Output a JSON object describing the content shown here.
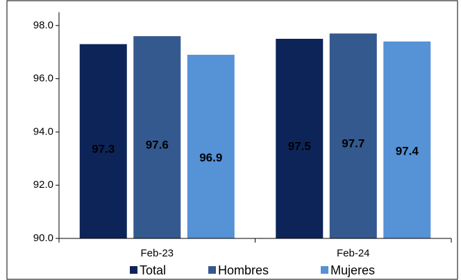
{
  "chart_data": {
    "type": "bar",
    "categories": [
      "Feb-23",
      "Feb-24"
    ],
    "series": [
      {
        "name": "Total",
        "color": "#0d2459",
        "values": [
          97.3,
          97.5
        ],
        "label_color": "#ffffff"
      },
      {
        "name": "Hombres",
        "color": "#34598f",
        "values": [
          97.6,
          97.7
        ],
        "label_color": "#ffffff"
      },
      {
        "name": "Mujeres",
        "color": "#5592d6",
        "values": [
          96.9,
          97.4
        ],
        "label_color": "#000000"
      }
    ],
    "ylim": [
      90,
      98.5
    ],
    "yticks": [
      {
        "value": 90,
        "label": "90.0"
      },
      {
        "value": 92,
        "label": "92.0"
      },
      {
        "value": 94,
        "label": "94.0"
      },
      {
        "value": 96,
        "label": "96.0"
      },
      {
        "value": 98,
        "label": "98.0"
      }
    ],
    "legend": "bottom"
  }
}
